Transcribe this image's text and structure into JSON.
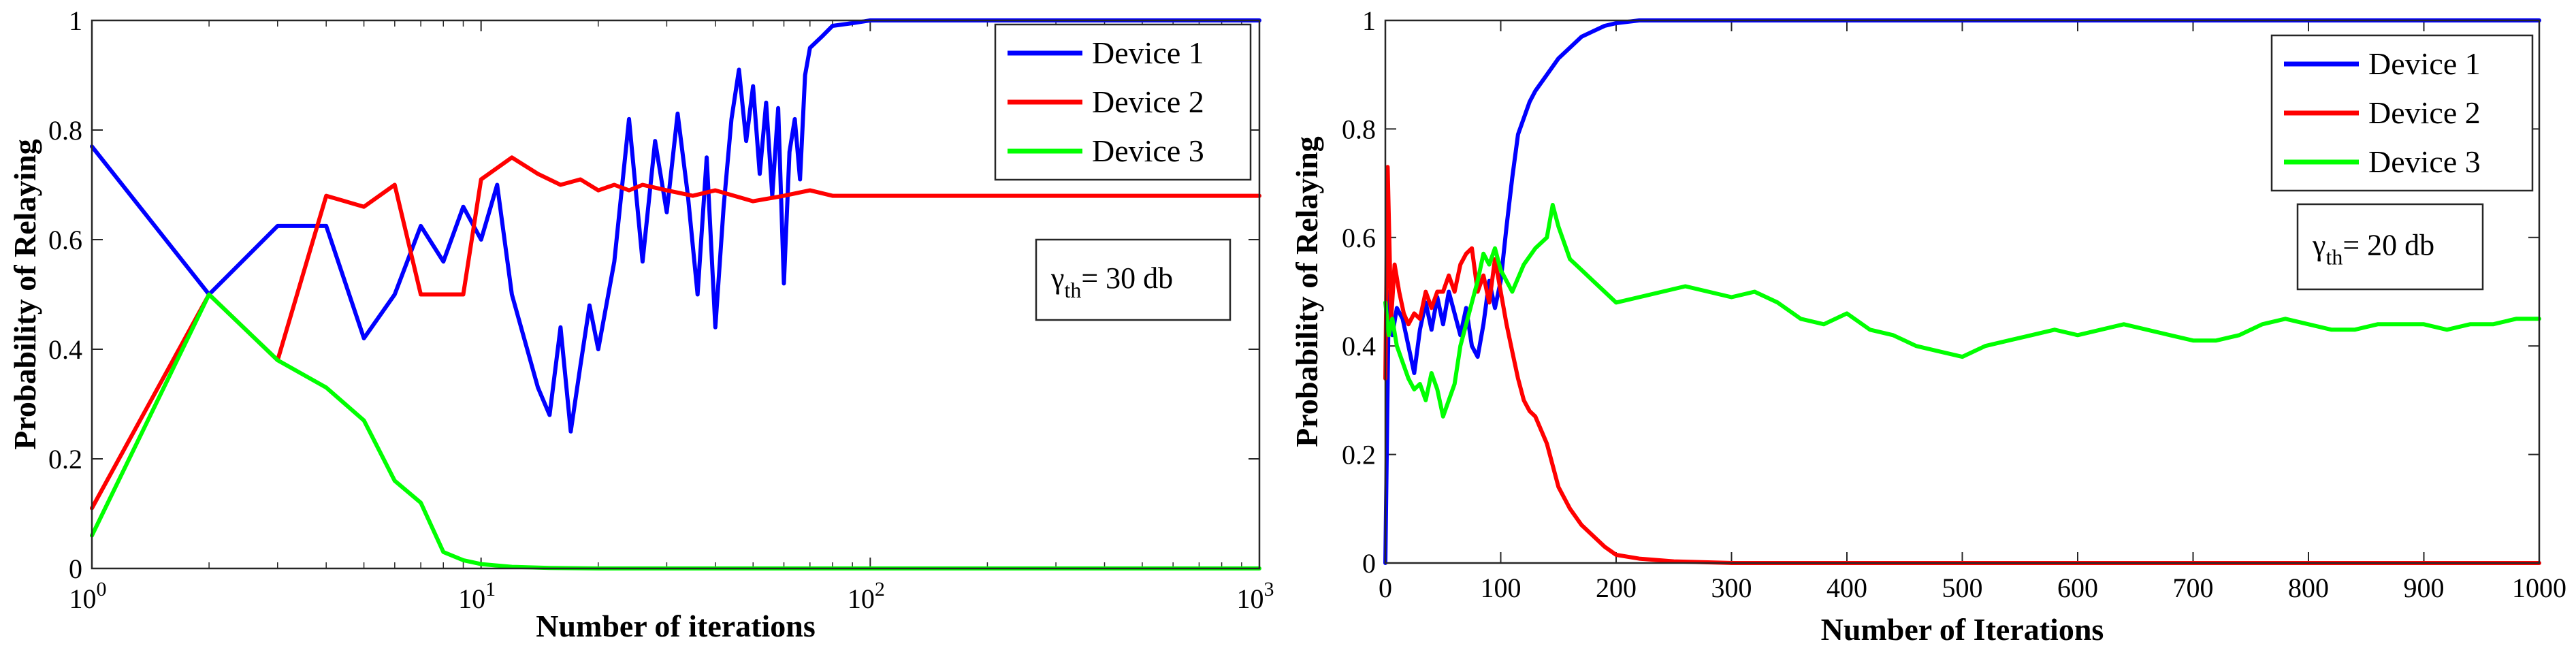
{
  "chart_data": [
    {
      "type": "line",
      "xscale": "log",
      "title": "",
      "xlabel": "Number of iterations",
      "ylabel": "Probability of Relaying",
      "xlim": [
        1,
        1000
      ],
      "ylim": [
        0,
        1
      ],
      "xticks": [
        {
          "value": 1,
          "base": "10",
          "exp": "0"
        },
        {
          "value": 10,
          "base": "10",
          "exp": "1"
        },
        {
          "value": 100,
          "base": "10",
          "exp": "2"
        },
        {
          "value": 1000,
          "base": "10",
          "exp": "3"
        }
      ],
      "yticks": [
        {
          "value": 0,
          "label": "0"
        },
        {
          "value": 0.2,
          "label": "0.2"
        },
        {
          "value": 0.4,
          "label": "0.4"
        },
        {
          "value": 0.6,
          "label": "0.6"
        },
        {
          "value": 0.8,
          "label": "0.8"
        },
        {
          "value": 1,
          "label": "1"
        }
      ],
      "annotation": {
        "symbol": "γ",
        "subscript": "th",
        "text": "= 30 db"
      },
      "legend_position": "top-right",
      "series": [
        {
          "name": "Device 1",
          "color": "#0000ff",
          "x": [
            1,
            2,
            3,
            4,
            5,
            6,
            7,
            8,
            9,
            10,
            11,
            12,
            14,
            15,
            16,
            17,
            18,
            19,
            20,
            22,
            24,
            26,
            28,
            30,
            32,
            34,
            36,
            38,
            40,
            42,
            44,
            46,
            48,
            50,
            52,
            54,
            56,
            58,
            60,
            62,
            64,
            66,
            68,
            70,
            75,
            80,
            90,
            100,
            120,
            150,
            200,
            300,
            500,
            1000
          ],
          "y": [
            0.77,
            0.5,
            0.625,
            0.625,
            0.42,
            0.5,
            0.625,
            0.56,
            0.66,
            0.6,
            0.7,
            0.5,
            0.33,
            0.28,
            0.44,
            0.25,
            0.37,
            0.48,
            0.4,
            0.56,
            0.82,
            0.56,
            0.78,
            0.65,
            0.83,
            0.68,
            0.5,
            0.75,
            0.44,
            0.66,
            0.82,
            0.91,
            0.78,
            0.88,
            0.72,
            0.85,
            0.68,
            0.84,
            0.52,
            0.76,
            0.82,
            0.71,
            0.9,
            0.95,
            0.97,
            0.99,
            0.995,
            1,
            1,
            1,
            1,
            1,
            1,
            1
          ]
        },
        {
          "name": "Device 2",
          "color": "#ff0000",
          "x": [
            1,
            2,
            3,
            4,
            5,
            6,
            7,
            8,
            9,
            10,
            12,
            14,
            16,
            18,
            20,
            22,
            24,
            26,
            30,
            35,
            40,
            50,
            60,
            70,
            80,
            100,
            150,
            200,
            300,
            500,
            700,
            1000
          ],
          "y": [
            0.11,
            0.5,
            0.38,
            0.68,
            0.66,
            0.7,
            0.5,
            0.5,
            0.5,
            0.71,
            0.75,
            0.72,
            0.7,
            0.71,
            0.69,
            0.7,
            0.69,
            0.7,
            0.69,
            0.68,
            0.69,
            0.67,
            0.68,
            0.69,
            0.68,
            0.68,
            0.68,
            0.68,
            0.68,
            0.68,
            0.68,
            0.68
          ]
        },
        {
          "name": "Device 3",
          "color": "#00ff00",
          "x": [
            1,
            2,
            3,
            4,
            5,
            6,
            7,
            8,
            9,
            10,
            12,
            15,
            20,
            50,
            100,
            1000
          ],
          "y": [
            0.06,
            0.5,
            0.38,
            0.33,
            0.27,
            0.16,
            0.12,
            0.03,
            0.015,
            0.008,
            0.003,
            0.001,
            0,
            0,
            0,
            0
          ]
        }
      ]
    },
    {
      "type": "line",
      "xscale": "linear",
      "title": "",
      "xlabel": "Number of Iterations",
      "ylabel": "Probability of Relaying",
      "xlim": [
        0,
        1000
      ],
      "ylim": [
        0,
        1
      ],
      "xticks": [
        {
          "value": 0,
          "label": "0"
        },
        {
          "value": 100,
          "label": "100"
        },
        {
          "value": 200,
          "label": "200"
        },
        {
          "value": 300,
          "label": "300"
        },
        {
          "value": 400,
          "label": "400"
        },
        {
          "value": 500,
          "label": "500"
        },
        {
          "value": 600,
          "label": "600"
        },
        {
          "value": 700,
          "label": "700"
        },
        {
          "value": 800,
          "label": "800"
        },
        {
          "value": 900,
          "label": "900"
        },
        {
          "value": 1000,
          "label": "1000"
        }
      ],
      "yticks": [
        {
          "value": 0,
          "label": "0"
        },
        {
          "value": 0.2,
          "label": "0.2"
        },
        {
          "value": 0.4,
          "label": "0.4"
        },
        {
          "value": 0.6,
          "label": "0.6"
        },
        {
          "value": 0.8,
          "label": "0.8"
        },
        {
          "value": 1,
          "label": "1"
        }
      ],
      "annotation": {
        "symbol": "γ",
        "subscript": "th",
        "text": "= 20 db"
      },
      "legend_position": "top-right",
      "series": [
        {
          "name": "Device 1",
          "color": "#0000ff",
          "x": [
            0,
            3,
            6,
            10,
            15,
            20,
            25,
            30,
            35,
            40,
            45,
            50,
            55,
            60,
            65,
            70,
            75,
            80,
            85,
            90,
            95,
            100,
            105,
            110,
            115,
            120,
            125,
            130,
            140,
            150,
            160,
            170,
            180,
            190,
            200,
            220,
            250,
            300,
            400,
            500,
            600,
            700,
            800,
            900,
            1000
          ],
          "y": [
            0,
            0.5,
            0.42,
            0.47,
            0.45,
            0.4,
            0.35,
            0.43,
            0.48,
            0.43,
            0.49,
            0.44,
            0.5,
            0.46,
            0.42,
            0.47,
            0.4,
            0.38,
            0.44,
            0.52,
            0.47,
            0.52,
            0.62,
            0.71,
            0.79,
            0.82,
            0.85,
            0.87,
            0.9,
            0.93,
            0.95,
            0.97,
            0.98,
            0.99,
            0.995,
            1,
            1,
            1,
            1,
            1,
            1,
            1,
            1,
            1,
            1
          ]
        },
        {
          "name": "Device 2",
          "color": "#ff0000",
          "x": [
            0,
            2,
            5,
            8,
            12,
            16,
            20,
            25,
            30,
            35,
            40,
            45,
            50,
            55,
            60,
            65,
            70,
            75,
            80,
            85,
            90,
            95,
            100,
            105,
            110,
            115,
            120,
            125,
            130,
            140,
            150,
            160,
            170,
            180,
            190,
            200,
            220,
            250,
            300,
            400,
            500,
            600,
            700,
            800,
            900,
            1000
          ],
          "y": [
            0.34,
            0.73,
            0.45,
            0.55,
            0.5,
            0.46,
            0.44,
            0.46,
            0.45,
            0.5,
            0.47,
            0.5,
            0.5,
            0.53,
            0.5,
            0.55,
            0.57,
            0.58,
            0.5,
            0.53,
            0.48,
            0.56,
            0.5,
            0.44,
            0.39,
            0.34,
            0.3,
            0.28,
            0.27,
            0.22,
            0.14,
            0.1,
            0.07,
            0.05,
            0.03,
            0.015,
            0.008,
            0.003,
            0,
            0,
            0,
            0,
            0,
            0,
            0,
            0
          ]
        },
        {
          "name": "Device 3",
          "color": "#00ff00",
          "x": [
            0,
            3,
            6,
            10,
            15,
            20,
            25,
            30,
            35,
            40,
            45,
            50,
            55,
            60,
            65,
            70,
            75,
            80,
            85,
            90,
            95,
            100,
            110,
            120,
            130,
            140,
            145,
            150,
            160,
            170,
            180,
            190,
            200,
            220,
            240,
            260,
            280,
            300,
            320,
            340,
            360,
            380,
            400,
            420,
            440,
            460,
            480,
            500,
            520,
            540,
            560,
            580,
            600,
            620,
            640,
            660,
            680,
            700,
            720,
            740,
            760,
            780,
            800,
            820,
            840,
            860,
            880,
            900,
            920,
            940,
            960,
            980,
            1000
          ],
          "y": [
            0.48,
            0.42,
            0.45,
            0.4,
            0.37,
            0.34,
            0.32,
            0.33,
            0.3,
            0.35,
            0.32,
            0.27,
            0.3,
            0.33,
            0.4,
            0.44,
            0.48,
            0.52,
            0.57,
            0.55,
            0.58,
            0.54,
            0.5,
            0.55,
            0.58,
            0.6,
            0.66,
            0.62,
            0.56,
            0.54,
            0.52,
            0.5,
            0.48,
            0.49,
            0.5,
            0.51,
            0.5,
            0.49,
            0.5,
            0.48,
            0.45,
            0.44,
            0.46,
            0.43,
            0.42,
            0.4,
            0.39,
            0.38,
            0.4,
            0.41,
            0.42,
            0.43,
            0.42,
            0.43,
            0.44,
            0.43,
            0.42,
            0.41,
            0.41,
            0.42,
            0.44,
            0.45,
            0.44,
            0.43,
            0.43,
            0.44,
            0.44,
            0.44,
            0.43,
            0.44,
            0.44,
            0.45,
            0.45
          ]
        }
      ]
    }
  ]
}
